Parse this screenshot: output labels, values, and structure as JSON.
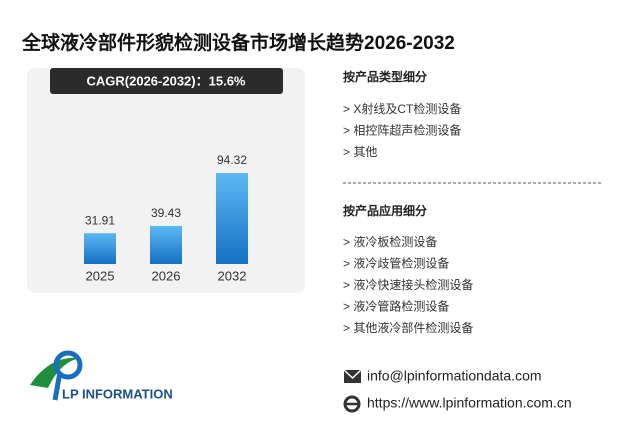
{
  "chart_data": {
    "type": "bar",
    "title": "全球液冷部件形貌检测设备市场增长趋势2026-2032",
    "annotation": "CAGR(2026-2032)：15.6%",
    "categories": [
      "2025",
      "2026",
      "2032"
    ],
    "values": [
      31.91,
      39.43,
      94.32
    ],
    "color": "#2a8ee0",
    "ylim": [
      0,
      100
    ]
  },
  "segments": [
    {
      "heading": "按产品类型细分",
      "items": [
        "> X射线及CT检测设备",
        "> 相控阵超声检测设备",
        "> 其他"
      ]
    },
    {
      "heading": "按产品应用细分",
      "items": [
        "> 液冷板检测设备",
        "> 液冷歧管检测设备",
        "> 液冷快速接头检测设备",
        "> 液冷管路检测设备",
        "> 其他液冷部件检测设备"
      ]
    }
  ],
  "footer": {
    "logo": "LP INFORMATION",
    "email": "info@lpinformationdata.com",
    "website": "https://www.lpinformation.com.cn"
  }
}
